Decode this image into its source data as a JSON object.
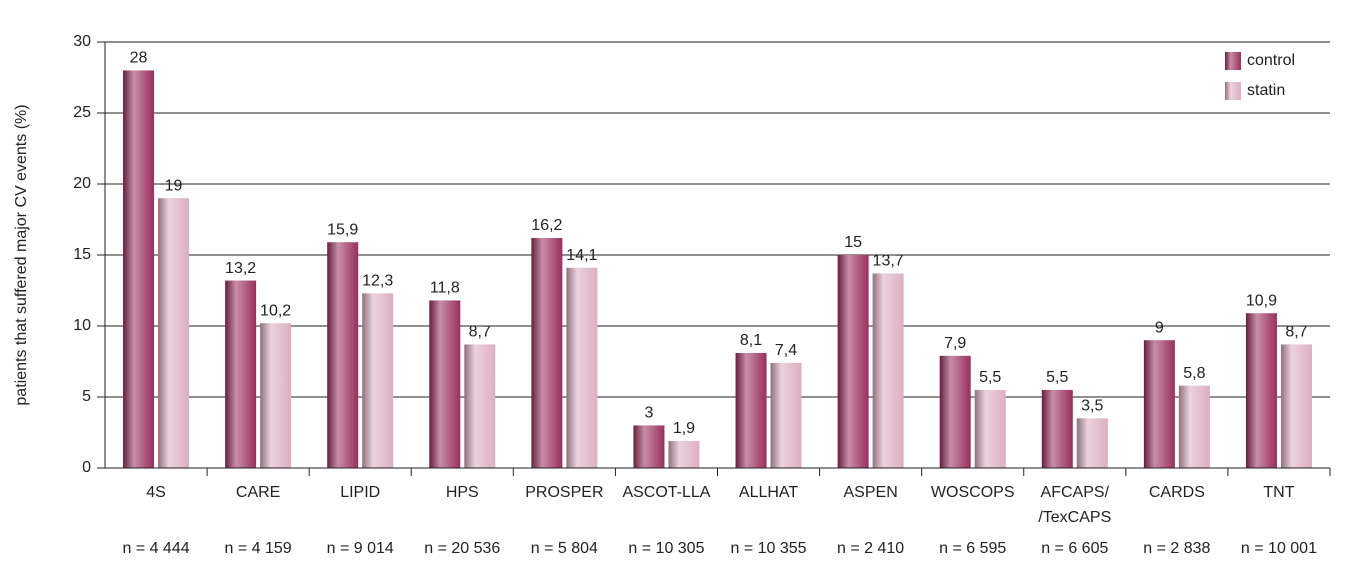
{
  "chart_data": {
    "type": "bar",
    "y_label": "patients that suffered major CV events (%)",
    "categories": [
      "4S",
      "CARE",
      "LIPID",
      "HPS",
      "PROSPER",
      "ASCOT-LLA",
      "ALLHAT",
      "ASPEN",
      "WOSCOPS",
      "AFCAPS/\n/TexCAPS",
      "CARDS",
      "TNT"
    ],
    "sample_sizes": [
      "n = 4 444",
      "n = 4 159",
      "n = 9 014",
      "n = 20 536",
      "n = 5 804",
      "n = 10 305",
      "n = 10 355",
      "n = 2 410",
      "n = 6 595",
      "n = 6 605",
      "n = 2 838",
      "n = 10 001"
    ],
    "series": [
      {
        "name": "control",
        "color": "#9a2f5e",
        "values": [
          28,
          13.2,
          15.9,
          11.8,
          16.2,
          3,
          8.1,
          15,
          7.9,
          5.5,
          9,
          10.9
        ],
        "value_labels": [
          "28",
          "13,2",
          "15,9",
          "11,8",
          "16,2",
          "3",
          "8,1",
          "15",
          "7,9",
          "5,5",
          "9",
          "10,9"
        ]
      },
      {
        "name": "statin",
        "color": "#dcaec2",
        "values": [
          19,
          10.2,
          12.3,
          8.7,
          14.1,
          1.9,
          7.4,
          13.7,
          5.5,
          3.5,
          5.8,
          8.7
        ],
        "value_labels": [
          "19",
          "10,2",
          "12,3",
          "8,7",
          "14,1",
          "1,9",
          "7,4",
          "13,7",
          "5,5",
          "3,5",
          "5,8",
          "8,7"
        ]
      }
    ],
    "ylim": [
      0,
      30
    ],
    "yticks": [
      0,
      5,
      10,
      15,
      20,
      25,
      30
    ],
    "grid": true,
    "legend": "upper right"
  }
}
